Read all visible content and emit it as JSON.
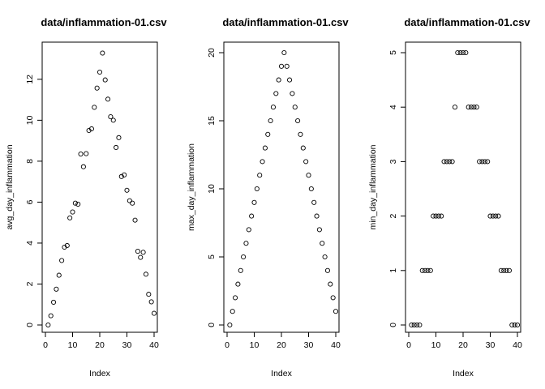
{
  "chart_data": [
    {
      "type": "scatter",
      "title": "data/inflammation-01.csv",
      "xlabel": "Index",
      "ylabel": "avg_day_inflammation",
      "xlim": [
        0,
        40
      ],
      "ylim": [
        0,
        13.3
      ],
      "xticks": [
        "0",
        "10",
        "20",
        "30",
        "40"
      ],
      "yticks": [
        "0",
        "2",
        "4",
        "6",
        "8",
        "10",
        "12"
      ],
      "x": [
        1,
        2,
        3,
        4,
        5,
        6,
        7,
        8,
        9,
        10,
        11,
        12,
        13,
        14,
        15,
        16,
        17,
        18,
        19,
        20,
        21,
        22,
        23,
        24,
        25,
        26,
        27,
        28,
        29,
        30,
        31,
        32,
        33,
        34,
        35,
        36,
        37,
        38,
        39,
        40
      ],
      "y": [
        0.0,
        0.45,
        1.11,
        1.75,
        2.43,
        3.15,
        3.8,
        3.88,
        5.23,
        5.52,
        5.95,
        5.9,
        8.35,
        7.73,
        8.37,
        9.5,
        9.58,
        10.63,
        11.57,
        12.35,
        13.28,
        11.97,
        11.03,
        10.17,
        10.0,
        8.67,
        9.15,
        7.25,
        7.33,
        6.58,
        6.07,
        5.95,
        5.12,
        3.6,
        3.3,
        3.55,
        2.48,
        1.5,
        1.13,
        0.57
      ]
    },
    {
      "type": "scatter",
      "title": "data/inflammation-01.csv",
      "xlabel": "Index",
      "ylabel": "max_day_inflammation",
      "xlim": [
        0,
        40
      ],
      "ylim": [
        0,
        20
      ],
      "xticks": [
        "0",
        "10",
        "20",
        "30",
        "40"
      ],
      "yticks": [
        "0",
        "5",
        "10",
        "15",
        "20"
      ],
      "x": [
        1,
        2,
        3,
        4,
        5,
        6,
        7,
        8,
        9,
        10,
        11,
        12,
        13,
        14,
        15,
        16,
        17,
        18,
        19,
        20,
        21,
        22,
        23,
        24,
        25,
        26,
        27,
        28,
        29,
        30,
        31,
        32,
        33,
        34,
        35,
        36,
        37,
        38,
        39,
        40
      ],
      "y": [
        0,
        1,
        2,
        3,
        4,
        5,
        6,
        7,
        8,
        9,
        10,
        11,
        12,
        13,
        14,
        15,
        16,
        17,
        18,
        19,
        20,
        19,
        18,
        17,
        16,
        15,
        14,
        13,
        12,
        11,
        10,
        9,
        8,
        7,
        6,
        5,
        4,
        3,
        2,
        1
      ]
    },
    {
      "type": "scatter",
      "title": "data/inflammation-01.csv",
      "xlabel": "Index",
      "ylabel": "min_day_inflammation",
      "xlim": [
        0,
        40
      ],
      "ylim": [
        0,
        5
      ],
      "xticks": [
        "0",
        "10",
        "20",
        "30",
        "40"
      ],
      "yticks": [
        "0",
        "1",
        "2",
        "3",
        "4",
        "5"
      ],
      "x": [
        1,
        2,
        3,
        4,
        5,
        6,
        7,
        8,
        9,
        10,
        11,
        12,
        13,
        14,
        15,
        16,
        17,
        18,
        19,
        20,
        21,
        22,
        23,
        24,
        25,
        26,
        27,
        28,
        29,
        30,
        31,
        32,
        33,
        34,
        35,
        36,
        37,
        38,
        39,
        40
      ],
      "y": [
        0,
        0,
        0,
        0,
        1,
        1,
        1,
        1,
        2,
        2,
        2,
        2,
        3,
        3,
        3,
        3,
        4,
        5,
        5,
        5,
        5,
        4,
        4,
        4,
        4,
        3,
        3,
        3,
        3,
        2,
        2,
        2,
        2,
        1,
        1,
        1,
        1,
        0,
        0,
        0
      ]
    }
  ]
}
